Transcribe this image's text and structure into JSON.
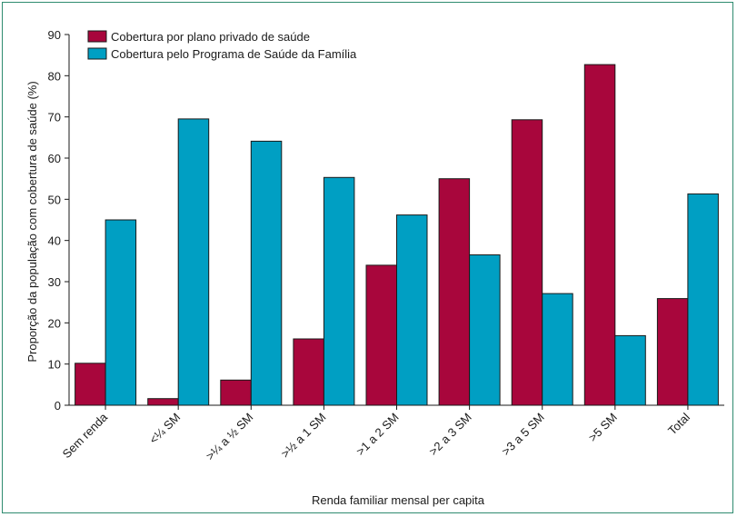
{
  "chart_data": {
    "type": "bar",
    "title": "",
    "xlabel": "Renda familiar mensal per capita",
    "ylabel": "Proporção da população com cobertura de saúde (%)",
    "ylim": [
      0,
      90
    ],
    "yticks": [
      0,
      10,
      20,
      30,
      40,
      50,
      60,
      70,
      80,
      90
    ],
    "grid": false,
    "legend_position": "top-left",
    "categories": [
      "Sem renda",
      "<¼ SM",
      ">¼ a ½ SM",
      ">½ a 1 SM",
      ">1 a 2 SM",
      ">2 a 3 SM",
      ">3 a 5 SM",
      ">5 SM",
      "Total"
    ],
    "series": [
      {
        "name": "Cobertura por plano privado de saúde",
        "color": "#a8063c",
        "values": [
          10.2,
          1.6,
          6.1,
          16.1,
          34.0,
          55.0,
          69.3,
          82.7,
          25.9
        ]
      },
      {
        "name": "Cobertura pelo Programa de Saúde da Família",
        "color": "#009fc3",
        "values": [
          45.0,
          69.5,
          64.1,
          55.3,
          46.2,
          36.5,
          27.1,
          16.9,
          51.3
        ]
      }
    ]
  }
}
